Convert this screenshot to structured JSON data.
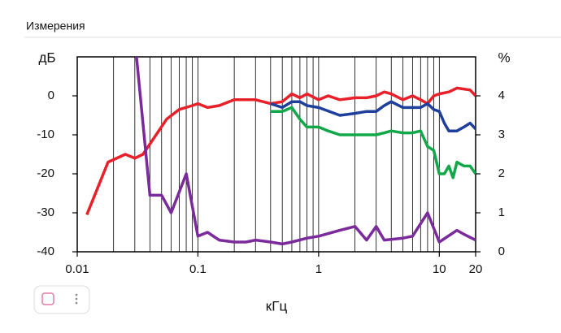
{
  "header": {
    "title": "Измерения"
  },
  "chart_data": {
    "type": "line",
    "x_label": "кГц",
    "y_label": "дБ",
    "y2_label": "%",
    "xscale": "log",
    "xlim": [
      0.01,
      20
    ],
    "xticks": [
      0.01,
      0.1,
      1,
      10,
      20
    ],
    "ylim": [
      -40,
      10
    ],
    "yticks": [
      0,
      -10,
      -20,
      -30,
      -40
    ],
    "y2lim": [
      0,
      5
    ],
    "y2ticks": [
      0,
      1,
      2,
      3,
      4
    ],
    "grid": true,
    "series": [
      {
        "color": "#e8202a",
        "axis": "y",
        "x": [
          0.012,
          0.018,
          0.025,
          0.03,
          0.035,
          0.045,
          0.055,
          0.07,
          0.09,
          0.1,
          0.12,
          0.15,
          0.2,
          0.3,
          0.4,
          0.5,
          0.6,
          0.7,
          0.8,
          1,
          1.2,
          1.5,
          2,
          2.5,
          3,
          3.5,
          4,
          5,
          6,
          7,
          8,
          9,
          10,
          12,
          14,
          18,
          20
        ],
        "values": [
          -30.5,
          -17,
          -15,
          -16,
          -15,
          -10,
          -6,
          -3.5,
          -2.5,
          -2,
          -3,
          -2.5,
          -1,
          -1,
          -2,
          -1.5,
          0.5,
          -0.5,
          0.5,
          -1,
          0,
          -1,
          -0.5,
          -0.5,
          0,
          1,
          0.5,
          -1,
          0,
          -1,
          -2,
          0,
          0.5,
          1,
          2,
          1.5,
          0
        ]
      },
      {
        "color": "#1f3f9c",
        "axis": "y",
        "x": [
          0.4,
          0.5,
          0.6,
          0.7,
          0.8,
          1,
          1.5,
          2,
          2.5,
          3,
          3.5,
          4,
          5,
          6,
          7,
          8,
          9,
          10,
          11,
          12,
          14,
          16,
          18,
          20
        ],
        "values": [
          -2,
          -3,
          -1.5,
          -1.5,
          -2.5,
          -3,
          -5,
          -4.5,
          -4,
          -4,
          -2.5,
          -1.5,
          -3,
          -3,
          -3,
          -2,
          -3.5,
          -4,
          -7,
          -9,
          -9,
          -8,
          -7,
          -8.5
        ]
      },
      {
        "color": "#12a84a",
        "axis": "y2",
        "x": [
          0.4,
          0.5,
          0.6,
          0.7,
          0.8,
          1,
          1.2,
          1.5,
          2,
          2.5,
          3,
          3.5,
          4,
          5,
          6,
          7,
          8,
          9,
          10,
          11,
          12,
          13,
          14,
          16,
          18,
          20
        ],
        "values": [
          3.6,
          3.6,
          3.7,
          3.4,
          3.2,
          3.2,
          3.1,
          3,
          3,
          3,
          3,
          3.05,
          3.1,
          3.05,
          3.05,
          3.1,
          2.7,
          2.6,
          2,
          2,
          2.2,
          1.9,
          2.3,
          2.2,
          2.2,
          2
        ]
      },
      {
        "color": "#7b2a9c",
        "axis": "y2",
        "x": [
          0.031,
          0.04,
          0.05,
          0.06,
          0.08,
          0.1,
          0.12,
          0.15,
          0.2,
          0.25,
          0.3,
          0.4,
          0.5,
          0.6,
          0.8,
          1,
          1.5,
          2,
          2.5,
          3,
          3.5,
          5,
          6,
          8,
          10,
          14,
          16,
          20
        ],
        "values": [
          5,
          1.45,
          1.45,
          1,
          2,
          0.4,
          0.5,
          0.3,
          0.25,
          0.25,
          0.3,
          0.25,
          0.2,
          0.25,
          0.35,
          0.4,
          0.55,
          0.65,
          0.3,
          0.65,
          0.3,
          0.35,
          0.4,
          1,
          0.25,
          0.55,
          0.45,
          0.3
        ]
      }
    ]
  }
}
